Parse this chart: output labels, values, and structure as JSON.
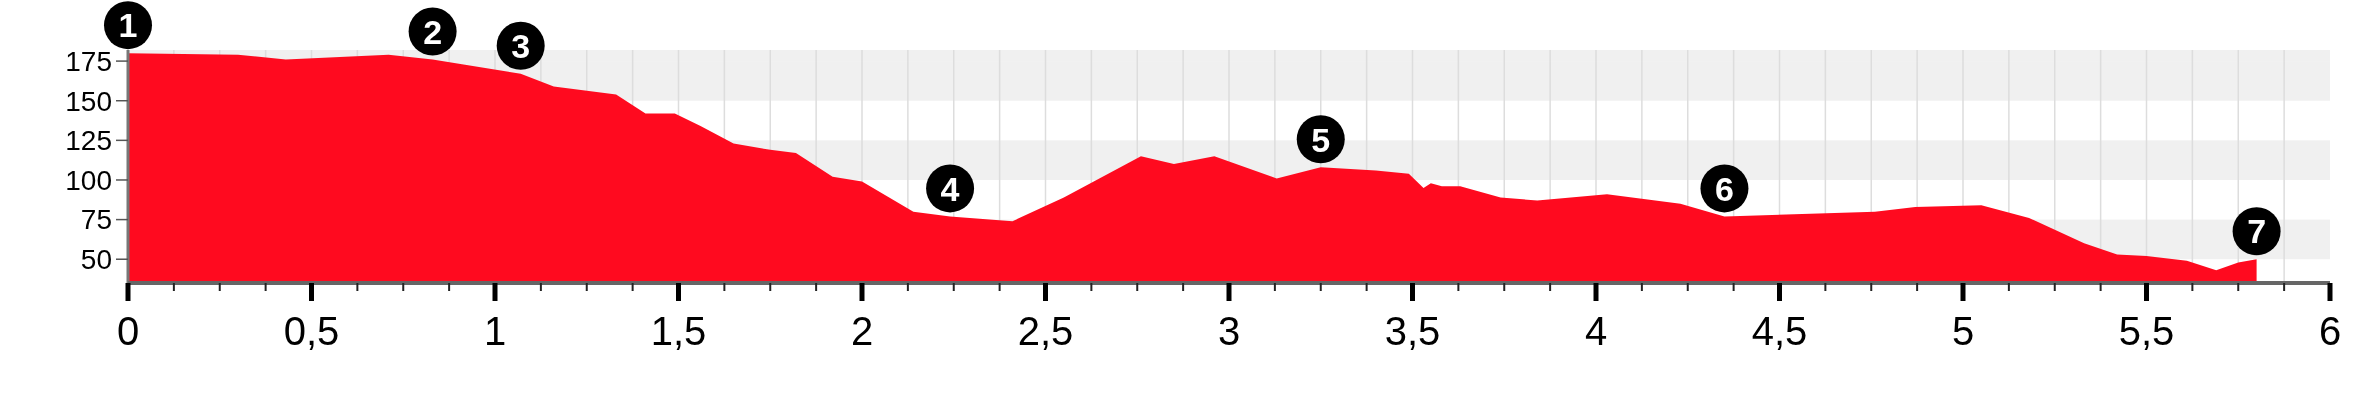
{
  "chart_data": {
    "type": "area",
    "color": "#ff0a1f",
    "x": [
      0,
      0.3,
      0.43,
      0.71,
      0.83,
      0.91,
      1.07,
      1.16,
      1.33,
      1.41,
      1.49,
      1.56,
      1.65,
      1.75,
      1.82,
      1.92,
      2.0,
      2.14,
      2.24,
      2.41,
      2.55,
      2.76,
      2.85,
      2.96,
      3.13,
      3.25,
      3.4,
      3.49,
      3.53,
      3.55,
      3.58,
      3.63,
      3.74,
      3.84,
      4.03,
      4.23,
      4.35,
      4.76,
      4.87,
      5.05,
      5.18,
      5.33,
      5.42,
      5.5,
      5.61,
      5.69,
      5.75,
      5.8
    ],
    "values": [
      180,
      179,
      176,
      179,
      176,
      173,
      167,
      159,
      154,
      142,
      142,
      134,
      123,
      119,
      117,
      102,
      99,
      80,
      77,
      74,
      89,
      115,
      110,
      115,
      101,
      108,
      106,
      104,
      95,
      98,
      96,
      96,
      89,
      87,
      91,
      85,
      77,
      80,
      83,
      84,
      76,
      60,
      53,
      52,
      49,
      43,
      48,
      50
    ],
    "xlim": [
      0,
      6
    ],
    "xticks": [
      0,
      {
        "value": 0.5,
        "label": "0,5"
      },
      1,
      {
        "value": 1.5,
        "label": "1,5"
      },
      2,
      {
        "value": 2.5,
        "label": "2,5"
      },
      3,
      {
        "value": 3.5,
        "label": "3,5"
      },
      4,
      {
        "value": 4.5,
        "label": "4,5"
      },
      5,
      {
        "value": 5.5,
        "label": "5,5"
      },
      6
    ],
    "ylim": [
      35,
      182
    ],
    "yticks": [
      50,
      75,
      100,
      125,
      150,
      175
    ],
    "grid": true,
    "annotations": [
      {
        "text": "1",
        "x": 0,
        "y": 180
      },
      {
        "text": "2",
        "x": 0.83,
        "y": 176
      },
      {
        "text": "3",
        "x": 1.07,
        "y": 167
      },
      {
        "text": "4",
        "x": 2.24,
        "y": 77
      },
      {
        "text": "5",
        "x": 3.25,
        "y": 108
      },
      {
        "text": "6",
        "x": 4.35,
        "y": 77
      },
      {
        "text": "7",
        "x": 5.8,
        "y": 50
      }
    ]
  }
}
